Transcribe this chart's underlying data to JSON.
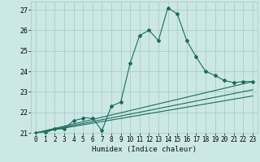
{
  "title": "",
  "xlabel": "Humidex (Indice chaleur)",
  "bg_color": "#cce8e4",
  "grid_color": "#aaccca",
  "line_color": "#1a6b5e",
  "xlim": [
    -0.5,
    23.5
  ],
  "ylim": [
    21,
    27.4
  ],
  "yticks": [
    21,
    22,
    23,
    24,
    25,
    26,
    27
  ],
  "xticks": [
    0,
    1,
    2,
    3,
    4,
    5,
    6,
    7,
    8,
    9,
    10,
    11,
    12,
    13,
    14,
    15,
    16,
    17,
    18,
    19,
    20,
    21,
    22,
    23
  ],
  "line1_x": [
    0,
    1,
    2,
    3,
    4,
    5,
    5,
    6,
    6,
    7,
    8,
    9,
    10,
    11,
    12,
    13,
    14,
    15,
    16,
    17,
    18,
    19,
    20,
    21,
    22,
    23
  ],
  "line1_y": [
    21.0,
    21.0,
    21.2,
    21.2,
    21.6,
    21.7,
    21.75,
    21.7,
    21.75,
    21.1,
    22.3,
    22.5,
    24.4,
    25.75,
    26.0,
    25.5,
    27.1,
    26.8,
    25.5,
    24.7,
    24.0,
    23.8,
    23.55,
    23.45,
    23.5,
    23.5
  ],
  "line2_x": [
    0,
    23
  ],
  "line2_y": [
    21.0,
    23.5
  ],
  "line3_x": [
    0,
    23
  ],
  "line3_y": [
    21.0,
    23.1
  ],
  "line4_x": [
    0,
    23
  ],
  "line4_y": [
    21.0,
    22.8
  ],
  "marker_x": [
    0,
    1,
    2,
    3,
    4,
    5,
    6,
    7,
    8,
    9,
    10,
    11,
    12,
    13,
    14,
    15,
    16,
    17,
    18,
    19,
    20,
    21,
    22,
    23
  ],
  "marker_y": [
    21.0,
    21.0,
    21.2,
    21.2,
    21.6,
    21.7,
    21.7,
    21.1,
    22.3,
    22.5,
    24.4,
    25.75,
    26.0,
    25.5,
    27.1,
    26.8,
    25.5,
    24.7,
    24.0,
    23.8,
    23.55,
    23.45,
    23.5,
    23.5
  ]
}
